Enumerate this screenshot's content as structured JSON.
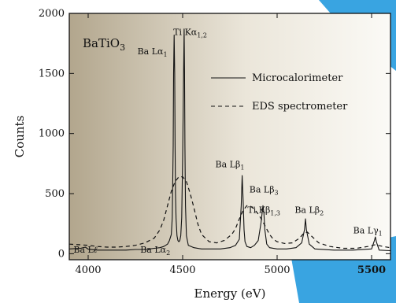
{
  "chart_data": {
    "type": "line",
    "title": "",
    "xlabel": "Energy (eV)",
    "ylabel": "Counts",
    "xlim": [
      3900,
      5600
    ],
    "ylim": [
      -50,
      2000
    ],
    "xticks": [
      4000,
      4500,
      5000,
      5500
    ],
    "yticks": [
      0,
      500,
      1000,
      1500,
      2000
    ],
    "legend_position": "top-right",
    "sample_label": {
      "main": "BaTiO",
      "sub": "3"
    },
    "annotations": [
      {
        "id": "ba-l-ell",
        "x": 3985,
        "y": 8,
        "parts": [
          [
            "Ba L",
            ""
          ],
          [
            "ℓ",
            "italic"
          ]
        ]
      },
      {
        "id": "ba-la2",
        "x": 4355,
        "y": 8,
        "parts": [
          [
            "Ba L",
            ""
          ],
          [
            "α",
            ""
          ],
          [
            "2",
            "sub"
          ]
        ]
      },
      {
        "id": "ba-la1",
        "x": 4340,
        "y": 1660,
        "parts": [
          [
            "Ba L",
            ""
          ],
          [
            "α",
            ""
          ],
          [
            "1",
            "sub"
          ]
        ]
      },
      {
        "id": "ti-ka12",
        "x": 4540,
        "y": 1820,
        "parts": [
          [
            "Ti K",
            ""
          ],
          [
            "α",
            ""
          ],
          [
            "1,2",
            "sub"
          ]
        ]
      },
      {
        "id": "ba-lb1",
        "x": 4750,
        "y": 720,
        "parts": [
          [
            "Ba L",
            ""
          ],
          [
            "β",
            ""
          ],
          [
            "1",
            "sub"
          ]
        ]
      },
      {
        "id": "ba-lb3",
        "x": 4930,
        "y": 510,
        "parts": [
          [
            "Ba L",
            ""
          ],
          [
            "β",
            ""
          ],
          [
            "3",
            "sub"
          ]
        ]
      },
      {
        "id": "ti-kb13",
        "x": 4930,
        "y": 340,
        "parts": [
          [
            "Ti K",
            ""
          ],
          [
            "β",
            ""
          ],
          [
            "1,3",
            "sub"
          ]
        ]
      },
      {
        "id": "ba-lb2",
        "x": 5170,
        "y": 340,
        "parts": [
          [
            "Ba L",
            ""
          ],
          [
            "β",
            ""
          ],
          [
            "2",
            "sub"
          ]
        ]
      },
      {
        "id": "ba-lg1",
        "x": 5480,
        "y": 170,
        "parts": [
          [
            "Ba L",
            ""
          ],
          [
            "γ",
            ""
          ],
          [
            "1",
            "sub"
          ]
        ]
      }
    ],
    "series": [
      {
        "name": "Microcalorimeter",
        "style": "solid",
        "x": [
          3900,
          3960,
          3985,
          4000,
          4050,
          4100,
          4150,
          4200,
          4250,
          4300,
          4350,
          4380,
          4400,
          4420,
          4430,
          4440,
          4445,
          4450,
          4452,
          4455,
          4458,
          4460,
          4462,
          4465,
          4470,
          4475,
          4480,
          4485,
          4490,
          4495,
          4500,
          4505,
          4508,
          4510,
          4512,
          4515,
          4520,
          4530,
          4560,
          4600,
          4650,
          4700,
          4750,
          4780,
          4800,
          4810,
          4815,
          4820,
          4825,
          4830,
          4840,
          4860,
          4880,
          4900,
          4915,
          4925,
          4930,
          4935,
          4945,
          4960,
          5000,
          5050,
          5100,
          5130,
          5145,
          5150,
          5155,
          5170,
          5200,
          5300,
          5400,
          5500,
          5515,
          5520,
          5525,
          5540,
          5600
        ],
        "y": [
          40,
          45,
          55,
          38,
          30,
          30,
          30,
          30,
          35,
          35,
          45,
          50,
          60,
          80,
          110,
          160,
          300,
          900,
          1500,
          1820,
          1500,
          900,
          500,
          300,
          150,
          110,
          100,
          110,
          150,
          300,
          800,
          1500,
          1870,
          1500,
          900,
          400,
          150,
          70,
          50,
          40,
          40,
          40,
          50,
          70,
          120,
          400,
          650,
          450,
          200,
          100,
          60,
          50,
          70,
          110,
          260,
          400,
          340,
          200,
          80,
          50,
          40,
          40,
          50,
          90,
          200,
          290,
          200,
          80,
          40,
          30,
          30,
          40,
          110,
          140,
          100,
          30,
          25
        ]
      },
      {
        "name": "EDS spectrometer",
        "style": "dashed",
        "x": [
          3900,
          3950,
          4000,
          4050,
          4100,
          4150,
          4200,
          4250,
          4300,
          4350,
          4380,
          4400,
          4420,
          4440,
          4460,
          4480,
          4500,
          4520,
          4540,
          4560,
          4580,
          4600,
          4640,
          4680,
          4720,
          4760,
          4780,
          4800,
          4820,
          4840,
          4860,
          4880,
          4900,
          4920,
          4940,
          4960,
          4980,
          5000,
          5040,
          5080,
          5120,
          5140,
          5160,
          5180,
          5220,
          5280,
          5350,
          5420,
          5480,
          5520,
          5560,
          5600
        ],
        "y": [
          80,
          75,
          70,
          60,
          55,
          55,
          60,
          70,
          90,
          130,
          200,
          280,
          400,
          520,
          600,
          640,
          640,
          600,
          500,
          380,
          250,
          160,
          100,
          90,
          110,
          160,
          210,
          290,
          360,
          400,
          395,
          370,
          330,
          280,
          220,
          160,
          120,
          100,
          85,
          90,
          130,
          170,
          180,
          150,
          90,
          60,
          45,
          45,
          60,
          75,
          60,
          50
        ]
      }
    ]
  }
}
